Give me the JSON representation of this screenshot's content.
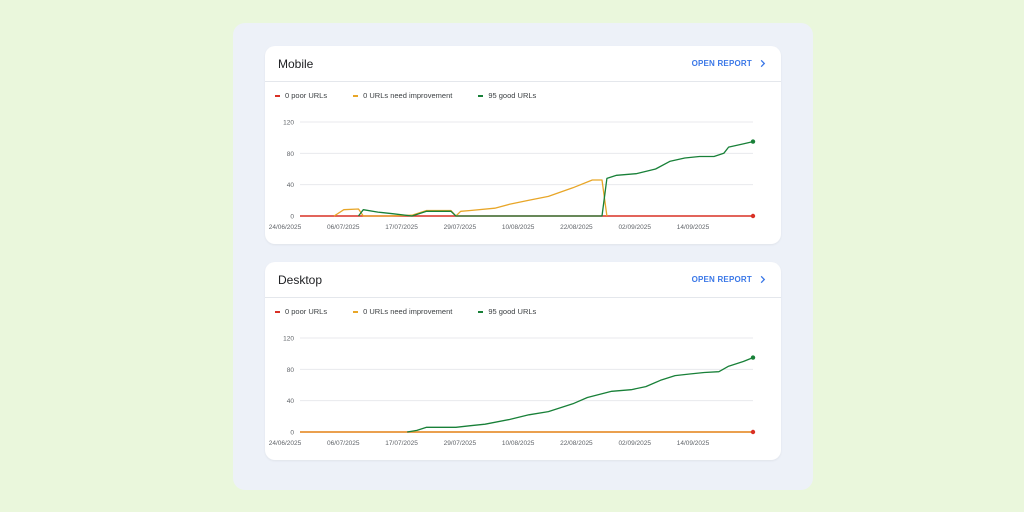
{
  "colors": {
    "poor": "#d93025",
    "improve": "#e8a628",
    "good": "#188038",
    "accent": "#3b78e7",
    "grid": "#e8eaed"
  },
  "open_report_label": "OPEN REPORT",
  "chevron_icon": "chevron-right-icon",
  "cards": [
    {
      "title": "Mobile",
      "legend": [
        "0 poor URLs",
        "0 URLs need improvement",
        "95 good URLs"
      ]
    },
    {
      "title": "Desktop",
      "legend": [
        "0 poor URLs",
        "0 URLs need improvement",
        "95 good URLs"
      ]
    }
  ],
  "chart_data": [
    {
      "type": "line",
      "x_ticks": [
        "24/06/2025",
        "06/07/2025",
        "17/07/2025",
        "29/07/2025",
        "10/08/2025",
        "22/08/2025",
        "02/09/2025",
        "14/09/2025"
      ],
      "y_ticks": [
        "120",
        "80",
        "40",
        "0"
      ],
      "ylim": [
        0,
        120
      ],
      "xlim": [
        "2025-06-24",
        "2025-09-25"
      ],
      "grid": true,
      "legend_position": "top-left",
      "series": [
        {
          "name": "0 poor URLs",
          "color": "#d93025",
          "points": [
            [
              "2025-06-24",
              0
            ],
            [
              "2025-09-25",
              0
            ]
          ]
        },
        {
          "name": "0 URLs need improvement",
          "color": "#e8a628",
          "points": [
            [
              "2025-07-01",
              0
            ],
            [
              "2025-07-03",
              8
            ],
            [
              "2025-07-06",
              9
            ],
            [
              "2025-07-07",
              0
            ],
            [
              "2025-07-12",
              0
            ],
            [
              "2025-07-17",
              1
            ],
            [
              "2025-07-20",
              7
            ],
            [
              "2025-07-25",
              7
            ],
            [
              "2025-07-26",
              0
            ],
            [
              "2025-07-27",
              6
            ],
            [
              "2025-07-29",
              7
            ],
            [
              "2025-08-03",
              10
            ],
            [
              "2025-08-06",
              15
            ],
            [
              "2025-08-10",
              20
            ],
            [
              "2025-08-14",
              25
            ],
            [
              "2025-08-19",
              36
            ],
            [
              "2025-08-23",
              46
            ],
            [
              "2025-08-25",
              46
            ],
            [
              "2025-08-26",
              0
            ]
          ]
        },
        {
          "name": "95 good URLs",
          "color": "#188038",
          "points": [
            [
              "2025-07-06",
              0
            ],
            [
              "2025-07-07",
              8
            ],
            [
              "2025-07-10",
              5
            ],
            [
              "2025-07-13",
              3
            ],
            [
              "2025-07-17",
              0
            ],
            [
              "2025-07-20",
              6
            ],
            [
              "2025-07-25",
              6
            ],
            [
              "2025-07-26",
              0
            ],
            [
              "2025-08-25",
              0
            ],
            [
              "2025-08-26",
              48
            ],
            [
              "2025-08-28",
              52
            ],
            [
              "2025-09-01",
              54
            ],
            [
              "2025-09-05",
              60
            ],
            [
              "2025-09-08",
              70
            ],
            [
              "2025-09-11",
              74
            ],
            [
              "2025-09-14",
              76
            ],
            [
              "2025-09-17",
              76
            ],
            [
              "2025-09-19",
              80
            ],
            [
              "2025-09-20",
              88
            ],
            [
              "2025-09-23",
              92
            ],
            [
              "2025-09-25",
              95
            ]
          ]
        }
      ]
    },
    {
      "type": "line",
      "x_ticks": [
        "24/06/2025",
        "06/07/2025",
        "17/07/2025",
        "29/07/2025",
        "10/08/2025",
        "22/08/2025",
        "02/09/2025",
        "14/09/2025"
      ],
      "y_ticks": [
        "120",
        "80",
        "40",
        "0"
      ],
      "ylim": [
        0,
        120
      ],
      "xlim": [
        "2025-06-24",
        "2025-09-25"
      ],
      "grid": true,
      "legend_position": "top-left",
      "series": [
        {
          "name": "0 poor URLs",
          "color": "#d93025",
          "points": [
            [
              "2025-06-24",
              0
            ],
            [
              "2025-09-25",
              0
            ]
          ]
        },
        {
          "name": "0 URLs need improvement",
          "color": "#e8a628",
          "points": [
            [
              "2025-06-24",
              0
            ],
            [
              "2025-09-25",
              0
            ]
          ]
        },
        {
          "name": "95 good URLs",
          "color": "#188038",
          "points": [
            [
              "2025-07-16",
              0
            ],
            [
              "2025-07-18",
              2
            ],
            [
              "2025-07-20",
              6
            ],
            [
              "2025-07-26",
              6
            ],
            [
              "2025-07-29",
              8
            ],
            [
              "2025-08-01",
              10
            ],
            [
              "2025-08-06",
              16
            ],
            [
              "2025-08-10",
              22
            ],
            [
              "2025-08-14",
              26
            ],
            [
              "2025-08-19",
              36
            ],
            [
              "2025-08-22",
              44
            ],
            [
              "2025-08-27",
              52
            ],
            [
              "2025-08-31",
              54
            ],
            [
              "2025-09-03",
              58
            ],
            [
              "2025-09-06",
              66
            ],
            [
              "2025-09-09",
              72
            ],
            [
              "2025-09-12",
              74
            ],
            [
              "2025-09-15",
              76
            ],
            [
              "2025-09-18",
              77
            ],
            [
              "2025-09-20",
              84
            ],
            [
              "2025-09-23",
              90
            ],
            [
              "2025-09-25",
              95
            ]
          ]
        }
      ]
    }
  ]
}
